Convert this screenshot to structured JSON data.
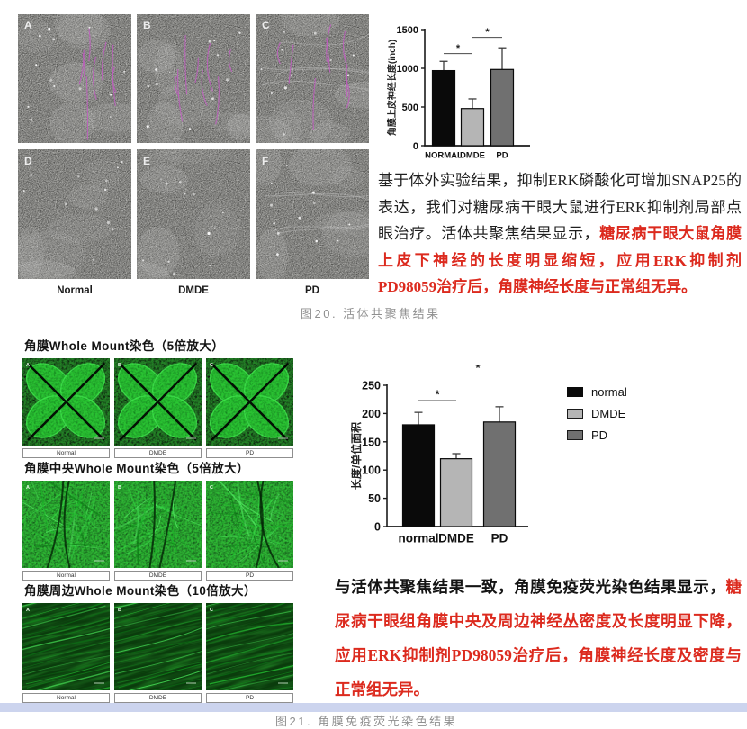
{
  "colors": {
    "red_text": "#dc2a1e",
    "caption_gray": "#8f8f8f",
    "magenta_trace": "#c05ec0",
    "lavender_strip": "#ccd4ee",
    "bar_black": "#0a0a0a",
    "bar_light_gray": "#b5b5b5",
    "bar_dark_gray": "#707070",
    "green_fluorescence": "#1fae2a"
  },
  "fig20": {
    "panel_letters": [
      "A",
      "B",
      "C",
      "D",
      "E",
      "F"
    ],
    "col_labels": [
      "Normal",
      "DMDE",
      "PD"
    ],
    "text_black": "基于体外实验结果，抑制ERK磷酸化可增加SNAP25的表达，我们对糖尿病干眼大鼠进行ERK抑制剂局部点眼治疗。活体共聚焦结果显示，",
    "text_red": "糖尿病干眼大鼠角膜上皮下神经的长度明显缩短，应用ERK抑制剂PD98059治疗后，角膜神经长度与正常组无异。",
    "caption": "图20. 活体共聚焦结果"
  },
  "fig21": {
    "sections": [
      {
        "header": "角膜Whole Mount染色（5倍放大）",
        "style": "wholemount",
        "panel_letters": [
          "A",
          "B",
          "C"
        ],
        "labels": [
          "Normal",
          "DMDE",
          "PD"
        ]
      },
      {
        "header": "角膜中央Whole Mount染色（5倍放大）",
        "style": "central",
        "panel_letters": [
          "A",
          "B",
          "C"
        ],
        "labels": [
          "Normal",
          "DMDE",
          "PD"
        ]
      },
      {
        "header": "角膜周边Whole Mount染色（10倍放大）",
        "style": "peripheral",
        "panel_letters": [
          "A",
          "B",
          "C"
        ],
        "labels": [
          "Normal",
          "DMDE",
          "PD"
        ]
      }
    ],
    "legend": [
      {
        "label": "normal",
        "fill": "#0a0a0a",
        "border": "#0a0a0a"
      },
      {
        "label": "DMDE",
        "fill": "#b5b5b5",
        "border": "#1a1a1a"
      },
      {
        "label": "PD",
        "fill": "#707070",
        "border": "#1a1a1a"
      }
    ],
    "text_black": "与活体共聚焦结果一致，角膜免疫荧光染色结果显示，",
    "text_red": "糖尿病干眼组角膜中央及周边神经丛密度及长度明显下降，应用ERK抑制剂PD98059治疗后，角膜神经长度及密度与正常组无异。",
    "caption": "图21. 角膜免疫荧光染色结果"
  },
  "chart_data": [
    {
      "type": "bar",
      "categories": [
        "NORMAL",
        "DMDE",
        "PD"
      ],
      "values": [
        970,
        480,
        985
      ],
      "errors": [
        120,
        125,
        280
      ],
      "title": "",
      "xlabel": "",
      "ylabel": "角膜上皮神经长度(inch)",
      "ylim": [
        0,
        1500
      ],
      "yticks": [
        0,
        500,
        1000,
        1500
      ],
      "bar_colors": [
        "#0a0a0a",
        "#b5b5b5",
        "#707070"
      ],
      "significance": [
        {
          "pair": [
            0,
            1
          ],
          "y": 1190,
          "label": "*"
        },
        {
          "pair": [
            1,
            2
          ],
          "y": 1400,
          "label": "*"
        }
      ],
      "grid": false,
      "legend_position": "none"
    },
    {
      "type": "bar",
      "categories": [
        "normal",
        "DMDE",
        "PD"
      ],
      "values": [
        180,
        120,
        185
      ],
      "errors": [
        22,
        9,
        27
      ],
      "title": "",
      "xlabel": "",
      "ylabel": "长度/单位面积",
      "ylim": [
        0,
        250
      ],
      "yticks": [
        0,
        50,
        100,
        150,
        200,
        250
      ],
      "bar_colors": [
        "#0a0a0a",
        "#b5b5b5",
        "#707070"
      ],
      "significance": [
        {
          "pair": [
            0,
            1
          ],
          "y": 223,
          "label": "*"
        },
        {
          "pair": [
            1,
            2
          ],
          "y": 270,
          "label": "*"
        }
      ],
      "legend": [
        "normal",
        "DMDE",
        "PD"
      ],
      "legend_position": "right",
      "grid": false
    }
  ]
}
